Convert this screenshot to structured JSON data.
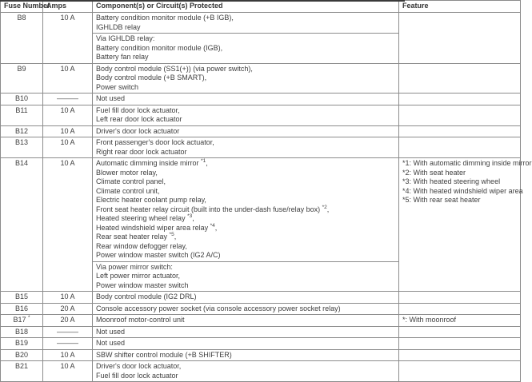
{
  "theme": {
    "text_color": "#3e3e3e",
    "border_color": "#8c8c8c",
    "top_bar_color": "#3a3a3a",
    "background_color": "#ffffff"
  },
  "table": {
    "columns": [
      "Fuse Number",
      "Amps",
      "Component(s) or Circuit(s) Protected",
      "Feature"
    ],
    "rows": [
      {
        "fuse": "B8",
        "amps": "10 A",
        "component_groups": [
          [
            "Battery condition monitor module (+B IGB),",
            "IGHLDB relay"
          ],
          [
            "Via IGHLDB relay:",
            "Battery condition monitor module (IGB),",
            "Battery fan relay"
          ]
        ],
        "feature": []
      },
      {
        "fuse": "B9",
        "amps": "10 A",
        "component_groups": [
          [
            "Body control module (SS1(+)) (via power switch),",
            "Body control module (+B SMART),",
            "Power switch"
          ]
        ],
        "feature": []
      },
      {
        "fuse": "B10",
        "amps": "———",
        "component_groups": [
          [
            "Not used"
          ]
        ],
        "feature": []
      },
      {
        "fuse": "B11",
        "amps": "10 A",
        "component_groups": [
          [
            "Fuel fill door lock actuator,",
            "Left rear door lock actuator"
          ]
        ],
        "feature": []
      },
      {
        "fuse": "B12",
        "amps": "10 A",
        "component_groups": [
          [
            "Driver's door lock actuator"
          ]
        ],
        "feature": []
      },
      {
        "fuse": "B13",
        "amps": "10 A",
        "component_groups": [
          [
            "Front passenger's door lock actuator,",
            "Right rear door lock actuator"
          ]
        ],
        "feature": []
      },
      {
        "fuse": "B14",
        "amps": "10 A",
        "component_groups": [
          [
            "Automatic dimming inside mirror *1,",
            "Blower motor relay,",
            "Climate control panel,",
            "Climate control unit,",
            "Electric heater coolant pump relay,",
            "Front seat heater relay circuit (built into the under-dash fuse/relay box) *2,",
            "Heated steering wheel relay *3,",
            "Heated windshield wiper area relay *4,",
            "Rear seat heater relay *5,",
            "Rear window defogger relay,",
            "Power window master switch (IG2 A/C)"
          ],
          [
            "Via power mirror switch:",
            "Left power mirror actuator,",
            "Power window master switch"
          ]
        ],
        "feature": [
          "*1: With automatic dimming inside mirror",
          "*2: With seat heater",
          "*3: With heated steering wheel",
          "*4: With heated windshield wiper area",
          "*5: With rear seat heater"
        ]
      },
      {
        "fuse": "B15",
        "amps": "10 A",
        "component_groups": [
          [
            "Body control module (IG2 DRL)"
          ]
        ],
        "feature": []
      },
      {
        "fuse": "B16",
        "amps": "20 A",
        "component_groups": [
          [
            "Console accessory power socket (via console accessory power socket relay)"
          ]
        ],
        "feature": []
      },
      {
        "fuse": "B17 *",
        "amps": "20 A",
        "component_groups": [
          [
            "Moonroof motor-control unit"
          ]
        ],
        "feature": [
          "*: With moonroof"
        ]
      },
      {
        "fuse": "B18",
        "amps": "———",
        "component_groups": [
          [
            "Not used"
          ]
        ],
        "feature": []
      },
      {
        "fuse": "B19",
        "amps": "———",
        "component_groups": [
          [
            "Not used"
          ]
        ],
        "feature": []
      },
      {
        "fuse": "B20",
        "amps": "10 A",
        "component_groups": [
          [
            "SBW shifter control module (+B SHIFTER)"
          ]
        ],
        "feature": []
      },
      {
        "fuse": "B21",
        "amps": "10 A",
        "component_groups": [
          [
            "Driver's door lock actuator,",
            "Fuel fill door lock actuator"
          ]
        ],
        "feature": []
      }
    ]
  }
}
